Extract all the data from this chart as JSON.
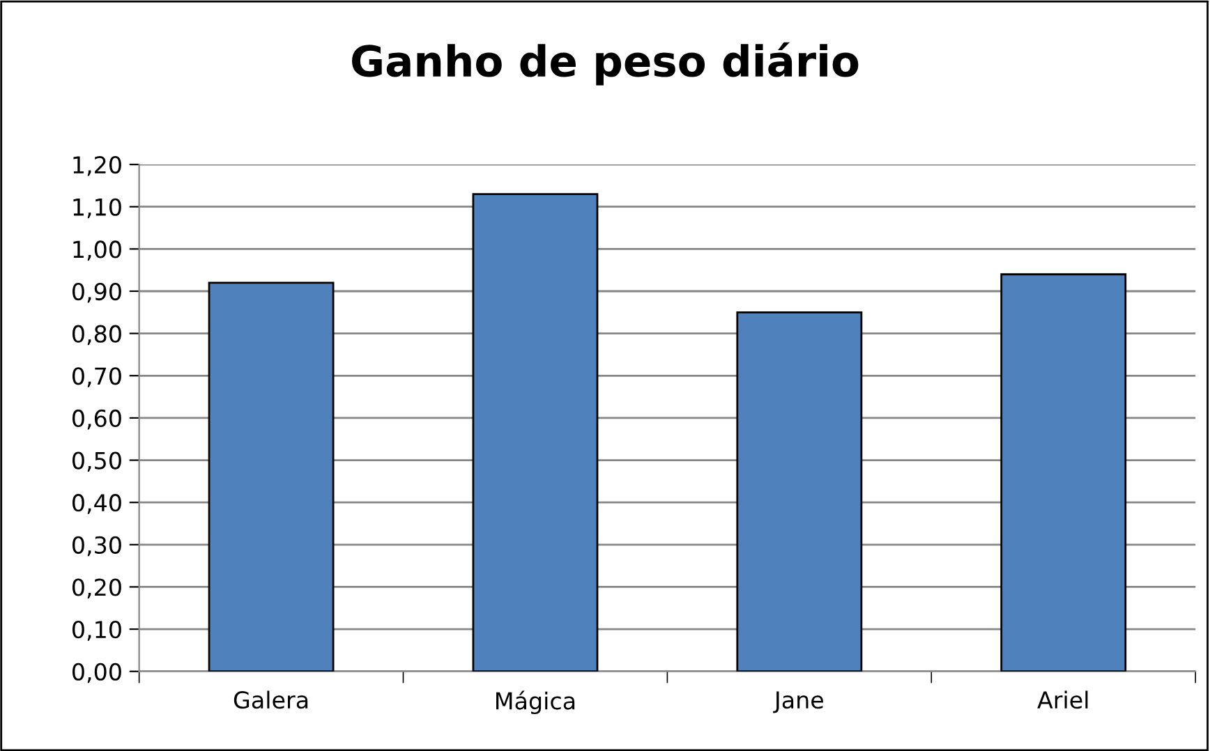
{
  "chart_data": {
    "type": "bar",
    "title": "Ganho de peso diário",
    "categories": [
      "Galera",
      "Mágica",
      "Jane",
      "Ariel"
    ],
    "values": [
      0.92,
      1.13,
      0.85,
      0.94
    ],
    "color": "#4f81bd",
    "ylim": [
      0,
      1.2
    ],
    "yticks": [
      {
        "value": 0,
        "label": "0,00"
      },
      {
        "value": 0.1,
        "label": "0,10"
      },
      {
        "value": 0.2,
        "label": "0,20"
      },
      {
        "value": 0.3,
        "label": "0,30"
      },
      {
        "value": 0.4,
        "label": "0,40"
      },
      {
        "value": 0.5,
        "label": "0,50"
      },
      {
        "value": 0.6,
        "label": "0,60"
      },
      {
        "value": 0.7,
        "label": "0,70"
      },
      {
        "value": 0.8,
        "label": "0,80"
      },
      {
        "value": 0.9,
        "label": "0,90"
      },
      {
        "value": 1.0,
        "label": "1,00"
      },
      {
        "value": 1.1,
        "label": "1,10"
      },
      {
        "value": 1.2,
        "label": "1,20"
      }
    ],
    "grid": "y"
  }
}
